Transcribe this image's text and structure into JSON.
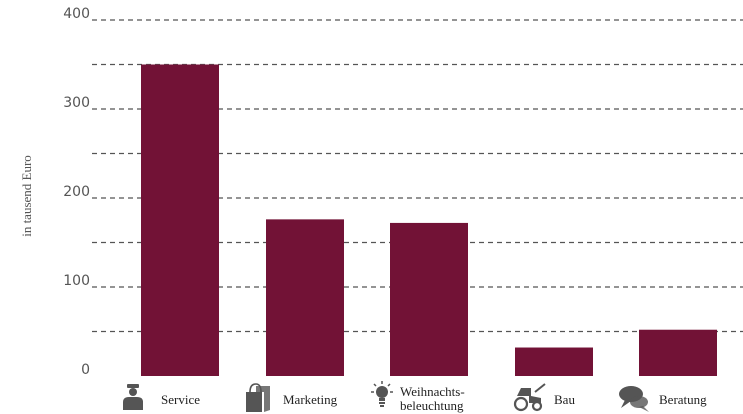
{
  "chart_data": {
    "type": "bar",
    "categories": [
      "Service",
      "Marketing",
      "Weihnachts-|beleuchtung",
      "Bau",
      "Beratung"
    ],
    "values": [
      350,
      176,
      172,
      32,
      52
    ],
    "ylabel": "in tausend Euro",
    "ylim": [
      0,
      400
    ],
    "yticks": [
      0,
      100,
      200,
      300,
      400
    ],
    "grid": true,
    "category_icons": [
      "person-icon",
      "shopping-bag-icon",
      "lightbulb-icon",
      "tractor-icon",
      "speech-bubble-icon"
    ],
    "colors": {
      "bar": "#721236",
      "grid": "#555555"
    }
  }
}
